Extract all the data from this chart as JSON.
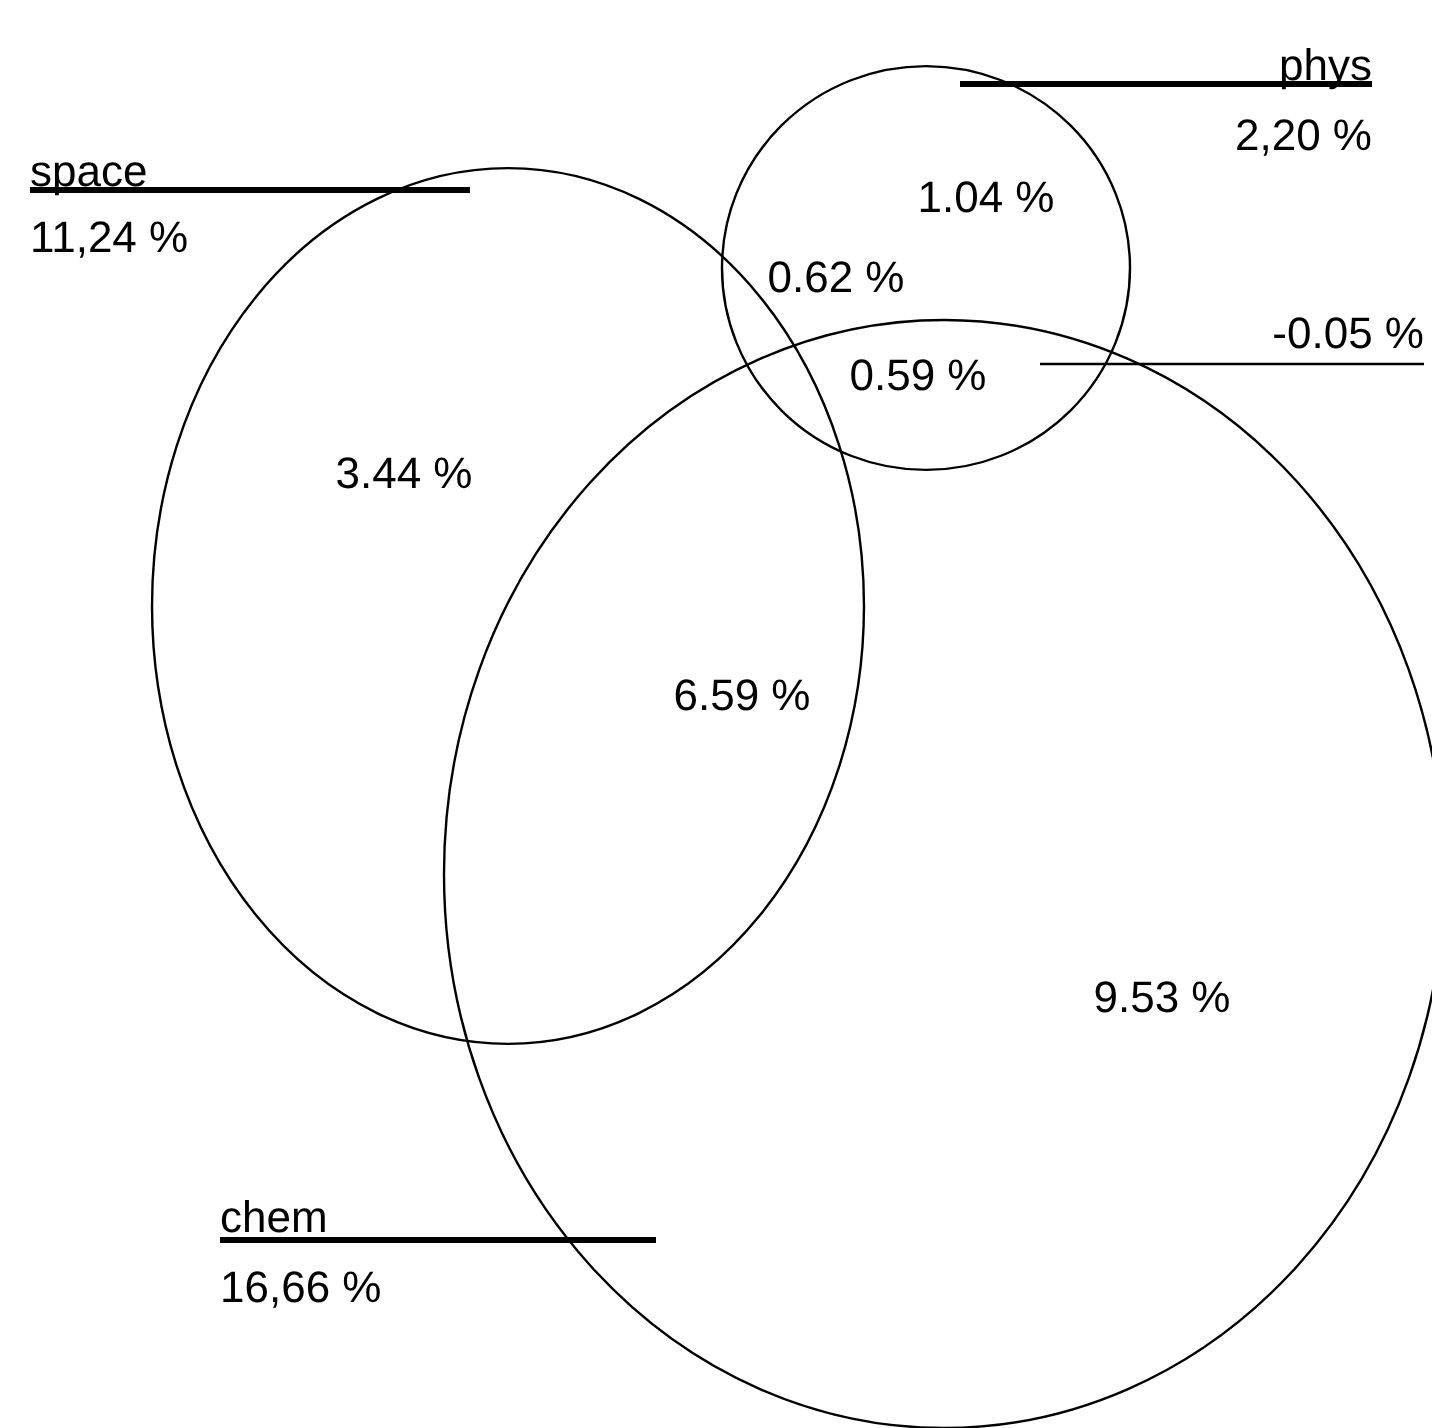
{
  "chart_data": {
    "type": "other",
    "categories": [
      "space",
      "phys",
      "chem"
    ],
    "values": [
      11.24,
      2.2,
      16.66
    ],
    "value_labels": [
      "11,24 %",
      "2,20 %",
      "16,66 %"
    ],
    "annotations": [
      "3.44 %",
      "1.04 %",
      "0.62 %",
      "0.59 %",
      "6.59 %",
      "9.53 %",
      "-0.05 %"
    ]
  }
}
